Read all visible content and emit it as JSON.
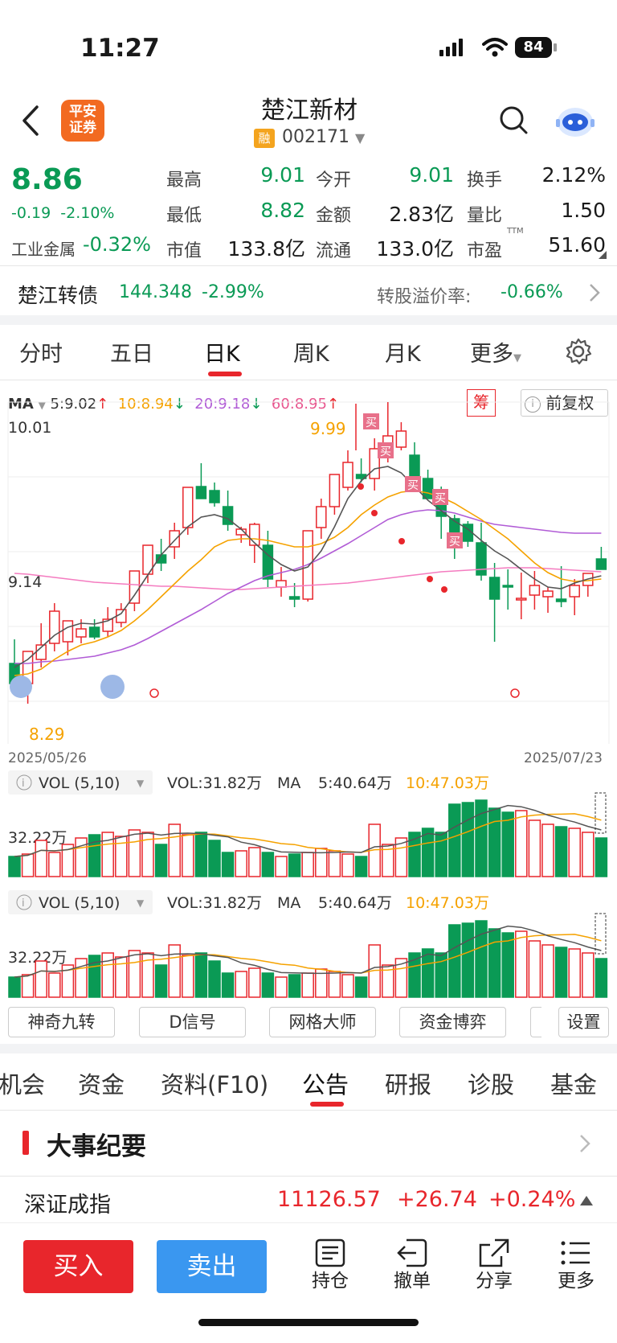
{
  "status": {
    "time": "11:27",
    "battery": "84"
  },
  "header": {
    "logo_text_1": "平安",
    "logo_text_2": "证券",
    "stock_name": "楚江新材",
    "rong": "融",
    "code": "002171"
  },
  "quote": {
    "price": "8.86",
    "change": "-0.19",
    "change_pct": "-2.10%",
    "sector_name": "工业金属",
    "sector_pct": "-0.32%",
    "high_label": "最高",
    "high": "9.01",
    "open_label": "今开",
    "open": "9.01",
    "turnover_label": "换手",
    "turnover": "2.12%",
    "low_label": "最低",
    "low": "8.82",
    "amount_label": "金额",
    "amount": "2.83亿",
    "vol_ratio_label": "量比",
    "vol_ratio": "1.50",
    "mcap_label": "市值",
    "mcap": "133.8亿",
    "float_label": "流通",
    "float": "133.0亿",
    "pe_label": "市盈",
    "pe_sup": "TTM",
    "pe": "51.60"
  },
  "bond": {
    "name": "楚江转债",
    "price": "144.348",
    "pct": "-2.99%",
    "premium_label": "转股溢价率:",
    "premium": "-0.66%"
  },
  "ktabs": [
    "分时",
    "五日",
    "日K",
    "周K",
    "月K",
    "更多"
  ],
  "ma_line": {
    "ma": "MA",
    "ma5": "5:9.02",
    "ma10": "10:8.94",
    "ma20": "20:9.18",
    "ma60": "60:8.95",
    "chou": "筹",
    "fuquan": "前复权"
  },
  "chart": {
    "ymax_label": "10.01",
    "ymid_label": "9.14",
    "ymin_label": "8.29",
    "high_mark": "9.99",
    "buy_tag": "买",
    "start_date": "2025/05/26",
    "end_date": "2025/07/23",
    "colors": {
      "up": "#e8262c",
      "down": "#0a9a55",
      "ma5": "#555555",
      "ma10": "#f5a200",
      "ma20": "#b15cd6",
      "ma60": "#f47cc0"
    }
  },
  "vol_panel": {
    "name": "VOL (5,10)",
    "vol": "VOL:31.82万",
    "ma": "MA",
    "ma5": "5:40.64万",
    "ma10": "10:47.03万",
    "axis": "32.22万"
  },
  "tools": [
    "神奇九转",
    "D信号",
    "网格大师",
    "资金博弈",
    "设置"
  ],
  "info_tabs": [
    "机会",
    "资金",
    "资料(F10)",
    "公告",
    "研报",
    "诊股",
    "基金"
  ],
  "events": {
    "title": "大事纪要"
  },
  "index": {
    "name": "深证成指",
    "value": "11126.57",
    "change": "+26.74",
    "pct": "+0.24%"
  },
  "actions": {
    "buy": "买入",
    "sell": "卖出",
    "hold": "持仓",
    "cancel": "撤单",
    "share": "分享",
    "more": "更多"
  }
}
